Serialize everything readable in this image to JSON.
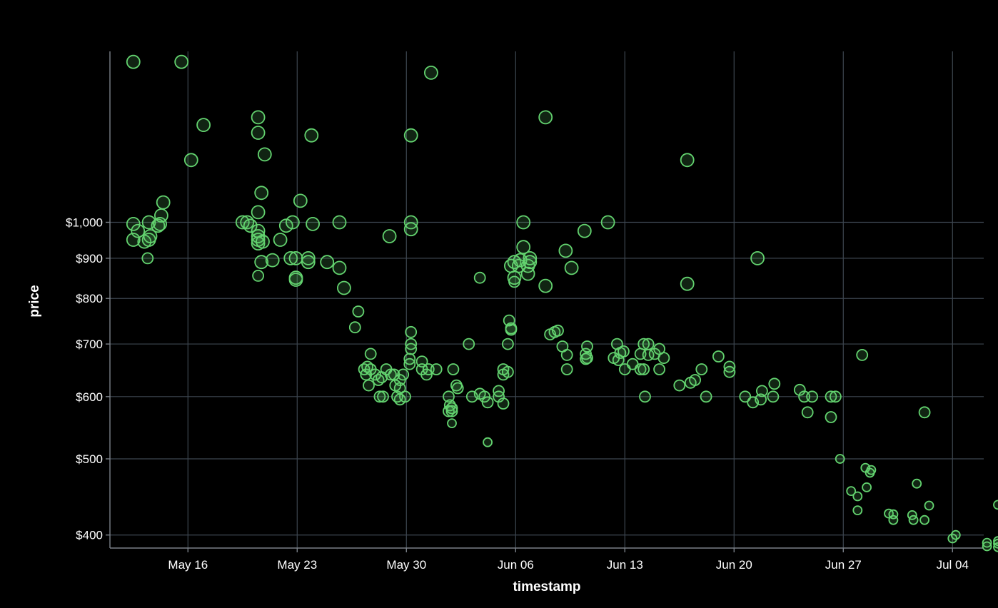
{
  "chart_data": {
    "type": "scatter",
    "xlabel": "timestamp",
    "ylabel": "price",
    "y_scale": "log",
    "xlim": [
      "2022-05-11",
      "2022-07-06"
    ],
    "ylim": [
      385,
      1650
    ],
    "x_ticks": [
      {
        "date": "2022-05-16",
        "label": "May 16"
      },
      {
        "date": "2022-05-23",
        "label": "May 23"
      },
      {
        "date": "2022-05-30",
        "label": "May 30"
      },
      {
        "date": "2022-06-06",
        "label": "Jun 06"
      },
      {
        "date": "2022-06-13",
        "label": "Jun 13"
      },
      {
        "date": "2022-06-20",
        "label": "Jun 20"
      },
      {
        "date": "2022-06-27",
        "label": "Jun 27"
      },
      {
        "date": "2022-07-04",
        "label": "Jul 04"
      }
    ],
    "y_ticks": [
      {
        "value": 400,
        "label": "$400"
      },
      {
        "value": 500,
        "label": "$500"
      },
      {
        "value": 600,
        "label": "$600"
      },
      {
        "value": 700,
        "label": "$700"
      },
      {
        "value": 800,
        "label": "$800"
      },
      {
        "value": 900,
        "label": "$900"
      },
      {
        "value": 1000,
        "label": "$1,000"
      }
    ],
    "grid": true,
    "legend": "none",
    "point_color": "#63d36f",
    "background": "#000000",
    "points": [
      {
        "x": "2022-05-12 12:00",
        "y": 1600,
        "size": "l"
      },
      {
        "x": "2022-05-15 14:00",
        "y": 1600,
        "size": "l"
      },
      {
        "x": "2022-05-17 00:00",
        "y": 1330,
        "size": "l"
      },
      {
        "x": "2022-05-16 05:00",
        "y": 1200,
        "size": "l"
      },
      {
        "x": "2022-05-12 12:00",
        "y": 995,
        "size": "l"
      },
      {
        "x": "2022-05-12 19:00",
        "y": 975,
        "size": "l"
      },
      {
        "x": "2022-05-13 05:00",
        "y": 945,
        "size": "l"
      },
      {
        "x": "2022-05-12 12:00",
        "y": 950,
        "size": "l"
      },
      {
        "x": "2022-05-13 10:00",
        "y": 900,
        "size": "m"
      },
      {
        "x": "2022-05-13 12:00",
        "y": 1000,
        "size": "l"
      },
      {
        "x": "2022-05-13 12:00",
        "y": 950,
        "size": "l"
      },
      {
        "x": "2022-05-13 14:00",
        "y": 960,
        "size": "l"
      },
      {
        "x": "2022-05-14 02:00",
        "y": 990,
        "size": "l"
      },
      {
        "x": "2022-05-14 05:00",
        "y": 995,
        "size": "l"
      },
      {
        "x": "2022-05-14 07:00",
        "y": 1020,
        "size": "l"
      },
      {
        "x": "2022-05-14 10:00",
        "y": 1060,
        "size": "l"
      },
      {
        "x": "2022-05-19 12:00",
        "y": 1000,
        "size": "l"
      },
      {
        "x": "2022-05-19 19:00",
        "y": 1000,
        "size": "l"
      },
      {
        "x": "2022-05-20 00:00",
        "y": 990,
        "size": "l"
      },
      {
        "x": "2022-05-20 12:00",
        "y": 1360,
        "size": "l"
      },
      {
        "x": "2022-05-20 12:00",
        "y": 1300,
        "size": "l"
      },
      {
        "x": "2022-05-20 22:00",
        "y": 1220,
        "size": "l"
      },
      {
        "x": "2022-05-20 17:00",
        "y": 1090,
        "size": "l"
      },
      {
        "x": "2022-05-20 12:00",
        "y": 1030,
        "size": "l"
      },
      {
        "x": "2022-05-20 12:00",
        "y": 975,
        "size": "l"
      },
      {
        "x": "2022-05-20 12:00",
        "y": 960,
        "size": "l"
      },
      {
        "x": "2022-05-20 12:00",
        "y": 940,
        "size": "l"
      },
      {
        "x": "2022-05-20 12:00",
        "y": 950,
        "size": "l"
      },
      {
        "x": "2022-05-20 19:00",
        "y": 945,
        "size": "l"
      },
      {
        "x": "2022-05-20 17:00",
        "y": 890,
        "size": "l"
      },
      {
        "x": "2022-05-20 12:00",
        "y": 855,
        "size": "m"
      },
      {
        "x": "2022-05-21 10:00",
        "y": 895,
        "size": "l"
      },
      {
        "x": "2022-05-21 22:00",
        "y": 950,
        "size": "l"
      },
      {
        "x": "2022-05-22 07:00",
        "y": 990,
        "size": "l"
      },
      {
        "x": "2022-05-22 14:00",
        "y": 900,
        "size": "l"
      },
      {
        "x": "2022-05-22 17:00",
        "y": 1000,
        "size": "l"
      },
      {
        "x": "2022-05-22 22:00",
        "y": 900,
        "size": "l"
      },
      {
        "x": "2022-05-22 22:00",
        "y": 850,
        "size": "l"
      },
      {
        "x": "2022-05-22 22:00",
        "y": 845,
        "size": "l"
      },
      {
        "x": "2022-05-23 05:00",
        "y": 1065,
        "size": "l"
      },
      {
        "x": "2022-05-23 17:00",
        "y": 900,
        "size": "l"
      },
      {
        "x": "2022-05-23 17:00",
        "y": 890,
        "size": "l"
      },
      {
        "x": "2022-05-23 22:00",
        "y": 1290,
        "size": "l"
      },
      {
        "x": "2022-05-24 00:00",
        "y": 995,
        "size": "l"
      },
      {
        "x": "2022-05-24 22:00",
        "y": 890,
        "size": "l"
      },
      {
        "x": "2022-05-25 17:00",
        "y": 1000,
        "size": "l"
      },
      {
        "x": "2022-05-25 17:00",
        "y": 875,
        "size": "l"
      },
      {
        "x": "2022-05-26 00:00",
        "y": 825,
        "size": "l"
      },
      {
        "x": "2022-05-26 17:00",
        "y": 735,
        "size": "m"
      },
      {
        "x": "2022-05-26 22:00",
        "y": 770,
        "size": "m"
      },
      {
        "x": "2022-05-27 07:00",
        "y": 650,
        "size": "m"
      },
      {
        "x": "2022-05-27 10:00",
        "y": 640,
        "size": "m"
      },
      {
        "x": "2022-05-27 12:00",
        "y": 655,
        "size": "m"
      },
      {
        "x": "2022-05-27 17:00",
        "y": 680,
        "size": "m"
      },
      {
        "x": "2022-05-27 17:00",
        "y": 650,
        "size": "m"
      },
      {
        "x": "2022-05-27 14:00",
        "y": 620,
        "size": "m"
      },
      {
        "x": "2022-05-28 00:00",
        "y": 640,
        "size": "m"
      },
      {
        "x": "2022-05-28 05:00",
        "y": 630,
        "size": "m"
      },
      {
        "x": "2022-05-28 07:00",
        "y": 600,
        "size": "m"
      },
      {
        "x": "2022-05-28 10:00",
        "y": 635,
        "size": "m"
      },
      {
        "x": "2022-05-28 12:00",
        "y": 600,
        "size": "m"
      },
      {
        "x": "2022-05-28 17:00",
        "y": 650,
        "size": "m"
      },
      {
        "x": "2022-05-29 00:00",
        "y": 640,
        "size": "m"
      },
      {
        "x": "2022-05-29 05:00",
        "y": 640,
        "size": "m"
      },
      {
        "x": "2022-05-29 07:00",
        "y": 620,
        "size": "m"
      },
      {
        "x": "2022-05-28 22:00",
        "y": 960,
        "size": "l"
      },
      {
        "x": "2022-05-29 10:00",
        "y": 600,
        "size": "m"
      },
      {
        "x": "2022-05-29 14:00",
        "y": 615,
        "size": "m"
      },
      {
        "x": "2022-05-29 14:00",
        "y": 595,
        "size": "m"
      },
      {
        "x": "2022-05-29 14:00",
        "y": 630,
        "size": "m"
      },
      {
        "x": "2022-05-29 19:00",
        "y": 640,
        "size": "m"
      },
      {
        "x": "2022-05-29 22:00",
        "y": 600,
        "size": "m"
      },
      {
        "x": "2022-05-30 05:00",
        "y": 660,
        "size": "m"
      },
      {
        "x": "2022-05-30 05:00",
        "y": 670,
        "size": "m"
      },
      {
        "x": "2022-05-30 07:00",
        "y": 690,
        "size": "m"
      },
      {
        "x": "2022-05-30 07:00",
        "y": 700,
        "size": "m"
      },
      {
        "x": "2022-05-30 07:00",
        "y": 725,
        "size": "m"
      },
      {
        "x": "2022-05-30 07:00",
        "y": 1000,
        "size": "l"
      },
      {
        "x": "2022-05-30 07:00",
        "y": 980,
        "size": "l"
      },
      {
        "x": "2022-05-30 07:00",
        "y": 1290,
        "size": "l"
      },
      {
        "x": "2022-05-31 00:00",
        "y": 665,
        "size": "m"
      },
      {
        "x": "2022-05-31 00:00",
        "y": 650,
        "size": "m"
      },
      {
        "x": "2022-05-31 07:00",
        "y": 640,
        "size": "m"
      },
      {
        "x": "2022-05-31 10:00",
        "y": 650,
        "size": "m"
      },
      {
        "x": "2022-05-31 22:00",
        "y": 650,
        "size": "m"
      },
      {
        "x": "2022-05-31 14:00",
        "y": 1550,
        "size": "l"
      },
      {
        "x": "2022-06-01 17:00",
        "y": 600,
        "size": "m"
      },
      {
        "x": "2022-06-01 17:00",
        "y": 575,
        "size": "m"
      },
      {
        "x": "2022-06-01 19:00",
        "y": 585,
        "size": "m"
      },
      {
        "x": "2022-06-01 22:00",
        "y": 575,
        "size": "m"
      },
      {
        "x": "2022-06-01 22:00",
        "y": 580,
        "size": "m"
      },
      {
        "x": "2022-06-01 22:00",
        "y": 555,
        "size": "s"
      },
      {
        "x": "2022-06-02 00:00",
        "y": 650,
        "size": "m"
      },
      {
        "x": "2022-06-02 05:00",
        "y": 620,
        "size": "m"
      },
      {
        "x": "2022-06-02 07:00",
        "y": 615,
        "size": "m"
      },
      {
        "x": "2022-06-03 00:00",
        "y": 700,
        "size": "m"
      },
      {
        "x": "2022-06-03 05:00",
        "y": 600,
        "size": "m"
      },
      {
        "x": "2022-06-03 17:00",
        "y": 850,
        "size": "m"
      },
      {
        "x": "2022-06-03 17:00",
        "y": 605,
        "size": "m"
      },
      {
        "x": "2022-06-04 00:00",
        "y": 600,
        "size": "m"
      },
      {
        "x": "2022-06-04 05:00",
        "y": 590,
        "size": "m"
      },
      {
        "x": "2022-06-04 05:00",
        "y": 525,
        "size": "s"
      },
      {
        "x": "2022-06-04 22:00",
        "y": 600,
        "size": "m"
      },
      {
        "x": "2022-06-04 22:00",
        "y": 610,
        "size": "m"
      },
      {
        "x": "2022-06-05 05:00",
        "y": 650,
        "size": "m"
      },
      {
        "x": "2022-06-05 05:00",
        "y": 640,
        "size": "m"
      },
      {
        "x": "2022-06-05 05:00",
        "y": 588,
        "size": "m"
      },
      {
        "x": "2022-06-05 12:00",
        "y": 700,
        "size": "m"
      },
      {
        "x": "2022-06-05 12:00",
        "y": 645,
        "size": "m"
      },
      {
        "x": "2022-06-05 14:00",
        "y": 750,
        "size": "m"
      },
      {
        "x": "2022-06-05 17:00",
        "y": 730,
        "size": "m"
      },
      {
        "x": "2022-06-05 17:00",
        "y": 733,
        "size": "m"
      },
      {
        "x": "2022-06-05 17:00",
        "y": 880,
        "size": "l"
      },
      {
        "x": "2022-06-05 22:00",
        "y": 890,
        "size": "l"
      },
      {
        "x": "2022-06-05 22:00",
        "y": 850,
        "size": "l"
      },
      {
        "x": "2022-06-05 22:00",
        "y": 840,
        "size": "m"
      },
      {
        "x": "2022-06-06 05:00",
        "y": 880,
        "size": "l"
      },
      {
        "x": "2022-06-06 07:00",
        "y": 895,
        "size": "l"
      },
      {
        "x": "2022-06-06 12:00",
        "y": 930,
        "size": "l"
      },
      {
        "x": "2022-06-06 12:00",
        "y": 1000,
        "size": "l"
      },
      {
        "x": "2022-06-06 19:00",
        "y": 880,
        "size": "l"
      },
      {
        "x": "2022-06-06 19:00",
        "y": 860,
        "size": "l"
      },
      {
        "x": "2022-06-06 22:00",
        "y": 900,
        "size": "l"
      },
      {
        "x": "2022-06-06 22:00",
        "y": 890,
        "size": "l"
      },
      {
        "x": "2022-06-07 22:00",
        "y": 830,
        "size": "l"
      },
      {
        "x": "2022-06-07 22:00",
        "y": 1360,
        "size": "l"
      },
      {
        "x": "2022-06-08 05:00",
        "y": 720,
        "size": "m"
      },
      {
        "x": "2022-06-08 12:00",
        "y": 725,
        "size": "m"
      },
      {
        "x": "2022-06-08 17:00",
        "y": 728,
        "size": "m"
      },
      {
        "x": "2022-06-09 00:00",
        "y": 695,
        "size": "m"
      },
      {
        "x": "2022-06-09 05:00",
        "y": 920,
        "size": "l"
      },
      {
        "x": "2022-06-09 07:00",
        "y": 678,
        "size": "m"
      },
      {
        "x": "2022-06-09 07:00",
        "y": 650,
        "size": "m"
      },
      {
        "x": "2022-06-09 14:00",
        "y": 875,
        "size": "l"
      },
      {
        "x": "2022-06-10 10:00",
        "y": 975,
        "size": "l"
      },
      {
        "x": "2022-06-10 12:00",
        "y": 670,
        "size": "m"
      },
      {
        "x": "2022-06-10 12:00",
        "y": 680,
        "size": "m"
      },
      {
        "x": "2022-06-10 14:00",
        "y": 672,
        "size": "m"
      },
      {
        "x": "2022-06-10 14:00",
        "y": 695,
        "size": "m"
      },
      {
        "x": "2022-06-11 22:00",
        "y": 1000,
        "size": "l"
      },
      {
        "x": "2022-06-12 07:00",
        "y": 672,
        "size": "m"
      },
      {
        "x": "2022-06-12 12:00",
        "y": 700,
        "size": "m"
      },
      {
        "x": "2022-06-12 14:00",
        "y": 668,
        "size": "m"
      },
      {
        "x": "2022-06-12 17:00",
        "y": 682,
        "size": "m"
      },
      {
        "x": "2022-06-12 22:00",
        "y": 685,
        "size": "m"
      },
      {
        "x": "2022-06-13 00:00",
        "y": 650,
        "size": "m"
      },
      {
        "x": "2022-06-13 12:00",
        "y": 660,
        "size": "m"
      },
      {
        "x": "2022-06-14 00:00",
        "y": 680,
        "size": "m"
      },
      {
        "x": "2022-06-14 00:00",
        "y": 650,
        "size": "m"
      },
      {
        "x": "2022-06-14 05:00",
        "y": 700,
        "size": "m"
      },
      {
        "x": "2022-06-14 05:00",
        "y": 650,
        "size": "m"
      },
      {
        "x": "2022-06-14 07:00",
        "y": 600,
        "size": "m"
      },
      {
        "x": "2022-06-14 12:00",
        "y": 700,
        "size": "m"
      },
      {
        "x": "2022-06-14 12:00",
        "y": 678,
        "size": "m"
      },
      {
        "x": "2022-06-14 22:00",
        "y": 680,
        "size": "m"
      },
      {
        "x": "2022-06-15 05:00",
        "y": 690,
        "size": "m"
      },
      {
        "x": "2022-06-15 05:00",
        "y": 650,
        "size": "m"
      },
      {
        "x": "2022-06-15 12:00",
        "y": 672,
        "size": "m"
      },
      {
        "x": "2022-06-16 12:00",
        "y": 620,
        "size": "m"
      },
      {
        "x": "2022-06-17 00:00",
        "y": 1200,
        "size": "l"
      },
      {
        "x": "2022-06-17 00:00",
        "y": 835,
        "size": "l"
      },
      {
        "x": "2022-06-17 05:00",
        "y": 625,
        "size": "m"
      },
      {
        "x": "2022-06-17 12:00",
        "y": 630,
        "size": "m"
      },
      {
        "x": "2022-06-17 22:00",
        "y": 650,
        "size": "m"
      },
      {
        "x": "2022-06-18 05:00",
        "y": 600,
        "size": "m"
      },
      {
        "x": "2022-06-19 00:00",
        "y": 675,
        "size": "m"
      },
      {
        "x": "2022-06-19 17:00",
        "y": 655,
        "size": "m"
      },
      {
        "x": "2022-06-19 17:00",
        "y": 645,
        "size": "m"
      },
      {
        "x": "2022-06-20 17:00",
        "y": 600,
        "size": "m"
      },
      {
        "x": "2022-06-21 05:00",
        "y": 590,
        "size": "m"
      },
      {
        "x": "2022-06-21 12:00",
        "y": 900,
        "size": "l"
      },
      {
        "x": "2022-06-21 17:00",
        "y": 595,
        "size": "m"
      },
      {
        "x": "2022-06-21 19:00",
        "y": 610,
        "size": "m"
      },
      {
        "x": "2022-06-22 12:00",
        "y": 600,
        "size": "m"
      },
      {
        "x": "2022-06-22 14:00",
        "y": 623,
        "size": "m"
      },
      {
        "x": "2022-06-24 05:00",
        "y": 612,
        "size": "m"
      },
      {
        "x": "2022-06-24 12:00",
        "y": 600,
        "size": "m"
      },
      {
        "x": "2022-06-24 17:00",
        "y": 573,
        "size": "m"
      },
      {
        "x": "2022-06-25 00:00",
        "y": 600,
        "size": "m"
      },
      {
        "x": "2022-06-26 05:00",
        "y": 600,
        "size": "m"
      },
      {
        "x": "2022-06-26 05:00",
        "y": 565,
        "size": "m"
      },
      {
        "x": "2022-06-26 12:00",
        "y": 600,
        "size": "m"
      },
      {
        "x": "2022-06-26 19:00",
        "y": 500,
        "size": "s"
      },
      {
        "x": "2022-06-27 12:00",
        "y": 455,
        "size": "s"
      },
      {
        "x": "2022-06-27 22:00",
        "y": 448,
        "size": "s"
      },
      {
        "x": "2022-06-27 22:00",
        "y": 430,
        "size": "s"
      },
      {
        "x": "2022-06-28 05:00",
        "y": 678,
        "size": "m"
      },
      {
        "x": "2022-06-28 10:00",
        "y": 487,
        "size": "s"
      },
      {
        "x": "2022-06-28 12:00",
        "y": 460,
        "size": "s"
      },
      {
        "x": "2022-06-28 17:00",
        "y": 480,
        "size": "s"
      },
      {
        "x": "2022-06-28 19:00",
        "y": 484,
        "size": "s"
      },
      {
        "x": "2022-06-29 22:00",
        "y": 426,
        "size": "s"
      },
      {
        "x": "2022-06-30 05:00",
        "y": 425,
        "size": "s"
      },
      {
        "x": "2022-06-30 05:00",
        "y": 418,
        "size": "s"
      },
      {
        "x": "2022-07-01 10:00",
        "y": 424,
        "size": "s"
      },
      {
        "x": "2022-07-01 12:00",
        "y": 418,
        "size": "s"
      },
      {
        "x": "2022-07-01 17:00",
        "y": 465,
        "size": "s"
      },
      {
        "x": "2022-07-02 05:00",
        "y": 573,
        "size": "m"
      },
      {
        "x": "2022-07-02 05:00",
        "y": 418,
        "size": "s"
      },
      {
        "x": "2022-07-02 12:00",
        "y": 436,
        "size": "s"
      },
      {
        "x": "2022-07-04 00:00",
        "y": 396,
        "size": "s"
      },
      {
        "x": "2022-07-04 05:00",
        "y": 400,
        "size": "s"
      },
      {
        "x": "2022-07-06 05:00",
        "y": 387,
        "size": "s"
      },
      {
        "x": "2022-07-06 05:00",
        "y": 391,
        "size": "s"
      },
      {
        "x": "2022-07-06 22:00",
        "y": 386,
        "size": "s"
      },
      {
        "x": "2022-07-06 22:00",
        "y": 390,
        "size": "s"
      },
      {
        "x": "2022-07-06 22:00",
        "y": 393,
        "size": "s"
      },
      {
        "x": "2022-07-06 22:00",
        "y": 437,
        "size": "s"
      }
    ]
  }
}
